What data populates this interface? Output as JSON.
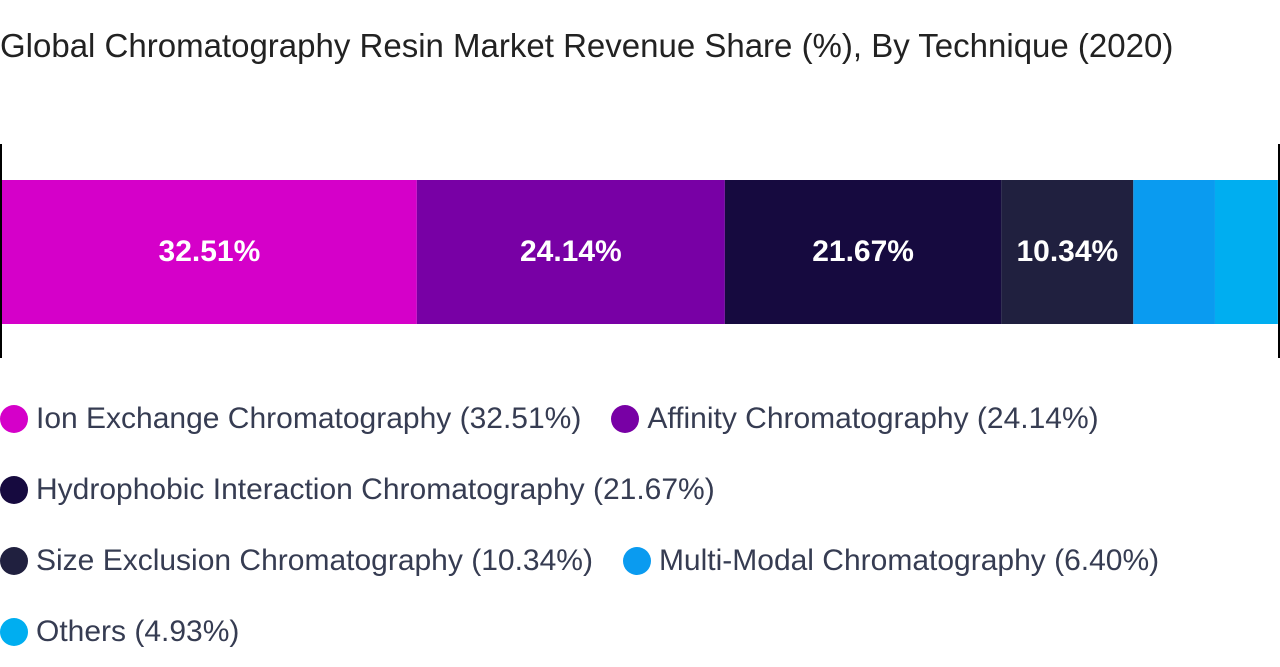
{
  "chart_data": {
    "type": "stacked_bar",
    "orientation": "horizontal",
    "title": "Global Chromatography Resin Market Revenue Share (%), By Technique (2020)",
    "xlim": [
      0,
      100
    ],
    "series": [
      {
        "name": "Ion Exchange Chromatography (32.51%)",
        "color": "#d500c9",
        "values": [
          32.51
        ],
        "value_labels": [
          "32.51%"
        ]
      },
      {
        "name": "Affinity Chromatography (24.14%)",
        "color": "#7800a5",
        "values": [
          24.14
        ],
        "value_labels": [
          "24.14%"
        ]
      },
      {
        "name": "Hydrophobic Interaction Chromatography (21.67%)",
        "color": "#160a3f",
        "values": [
          21.67
        ],
        "value_labels": [
          "21.67%"
        ]
      },
      {
        "name": "Size Exclusion Chromatography (10.34%)",
        "color": "#20203f",
        "values": [
          10.34
        ],
        "value_labels": [
          "10.34%"
        ]
      },
      {
        "name": "Multi-Modal Chromatography (6.40%)",
        "color": "#0a9bf0",
        "values": [
          6.4
        ],
        "value_labels": [
          null
        ]
      },
      {
        "name": "Others (4.93%)",
        "color": "#00aef0",
        "values": [
          4.93
        ],
        "value_labels": [
          null
        ]
      }
    ]
  }
}
